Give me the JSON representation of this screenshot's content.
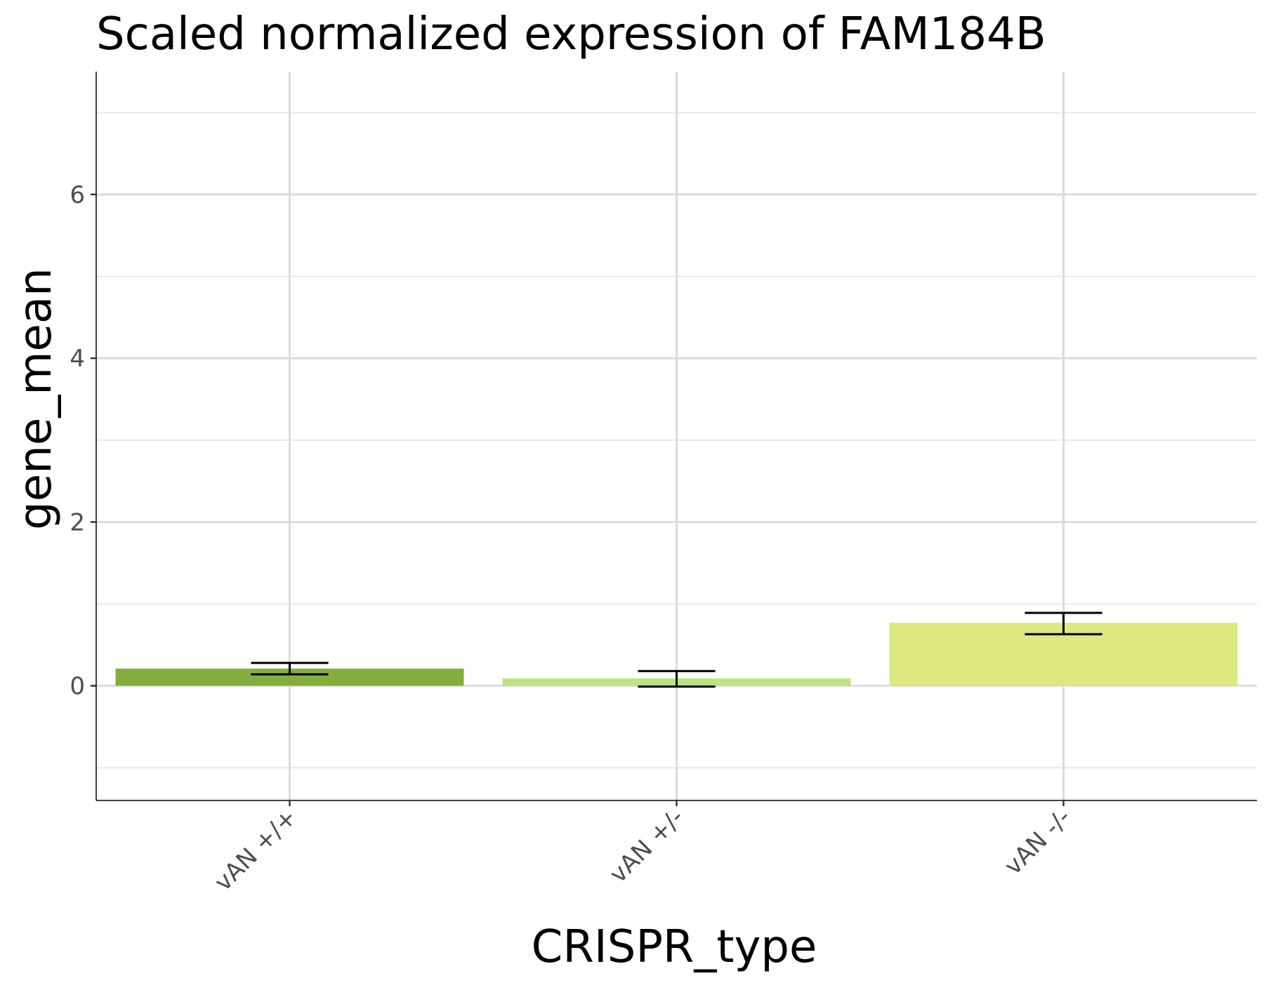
{
  "chart_data": {
    "type": "bar",
    "title": "Scaled normalized expression of FAM184B",
    "xlabel": "CRISPR_type",
    "ylabel": "gene_mean",
    "categories": [
      "vAN +/+",
      "vAN +/-",
      "vAN -/-"
    ],
    "values": [
      0.21,
      0.09,
      0.77
    ],
    "error_low": [
      0.14,
      -0.01,
      0.63
    ],
    "error_high": [
      0.28,
      0.18,
      0.89
    ],
    "colors": [
      "#84ad3c",
      "#bde37e",
      "#dee880"
    ],
    "ylim": [
      -1.4,
      7.5
    ],
    "yticks": [
      0,
      2,
      4,
      6
    ],
    "yticks_minor": [
      -1,
      1,
      3,
      5,
      7
    ],
    "grid": true,
    "legend": "none"
  }
}
